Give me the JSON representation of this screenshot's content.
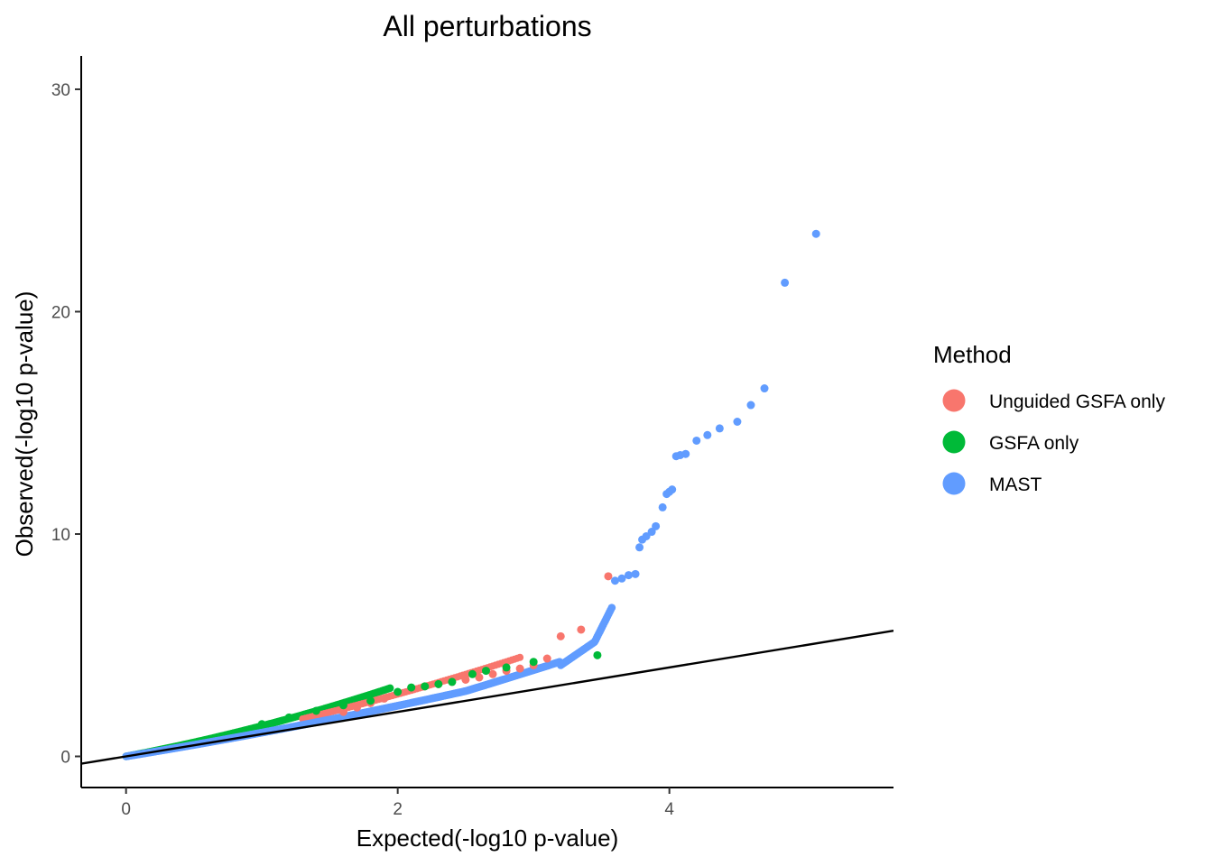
{
  "chart_data": {
    "type": "scatter",
    "title": "All perturbations",
    "xlabel": "Expected(-log10 p-value)",
    "ylabel": "Observed(-log10 p-value)",
    "xlim": [
      -0.33,
      5.65
    ],
    "ylim": [
      -1.4,
      31.5
    ],
    "x_ticks": [
      0,
      2,
      4
    ],
    "y_ticks": [
      0,
      10,
      20,
      30
    ],
    "grid": false,
    "reference_line": {
      "slope": 1,
      "intercept": 0
    },
    "legend": {
      "title": "Method",
      "position": "right",
      "entries": [
        {
          "label": "Unguided GSFA only",
          "color": "#F8766D"
        },
        {
          "label": "GSFA only",
          "color": "#00BA38"
        },
        {
          "label": "MAST",
          "color": "#619CFF"
        }
      ]
    },
    "series": [
      {
        "name": "Unguided GSFA only",
        "color": "#F8766D",
        "points": [
          [
            1.6,
            2.0
          ],
          [
            1.7,
            2.2
          ],
          [
            1.8,
            2.4
          ],
          [
            1.9,
            2.6
          ],
          [
            2.0,
            2.85
          ],
          [
            2.1,
            3.0
          ],
          [
            2.2,
            3.15
          ],
          [
            2.3,
            3.25
          ],
          [
            2.4,
            3.35
          ],
          [
            2.5,
            3.45
          ],
          [
            2.6,
            3.55
          ],
          [
            2.7,
            3.7
          ],
          [
            2.8,
            3.85
          ],
          [
            2.9,
            3.95
          ],
          [
            3.0,
            4.1
          ],
          [
            3.1,
            4.4
          ],
          [
            3.2,
            5.4
          ],
          [
            3.35,
            5.7
          ],
          [
            3.55,
            8.1
          ]
        ]
      },
      {
        "name": "GSFA only",
        "color": "#00BA38",
        "points": [
          [
            1.0,
            1.45
          ],
          [
            1.2,
            1.75
          ],
          [
            1.4,
            2.05
          ],
          [
            1.6,
            2.3
          ],
          [
            1.8,
            2.5
          ],
          [
            2.0,
            2.9
          ],
          [
            2.1,
            3.1
          ],
          [
            2.2,
            3.15
          ],
          [
            2.3,
            3.25
          ],
          [
            2.4,
            3.35
          ],
          [
            2.55,
            3.7
          ],
          [
            2.65,
            3.85
          ],
          [
            2.8,
            4.0
          ],
          [
            3.0,
            4.25
          ],
          [
            3.47,
            4.55
          ]
        ]
      },
      {
        "name": "MAST",
        "color": "#619CFF",
        "points": [
          [
            3.6,
            7.9
          ],
          [
            3.65,
            8.0
          ],
          [
            3.7,
            8.15
          ],
          [
            3.75,
            8.2
          ],
          [
            3.78,
            9.4
          ],
          [
            3.8,
            9.75
          ],
          [
            3.83,
            9.9
          ],
          [
            3.87,
            10.1
          ],
          [
            3.9,
            10.35
          ],
          [
            3.95,
            11.2
          ],
          [
            3.98,
            11.8
          ],
          [
            4.0,
            11.9
          ],
          [
            4.02,
            12.0
          ],
          [
            4.05,
            13.5
          ],
          [
            4.08,
            13.55
          ],
          [
            4.12,
            13.6
          ],
          [
            4.2,
            14.2
          ],
          [
            4.28,
            14.45
          ],
          [
            4.37,
            14.75
          ],
          [
            4.5,
            15.05
          ],
          [
            4.6,
            15.8
          ],
          [
            4.7,
            16.55
          ],
          [
            4.85,
            21.3
          ],
          [
            5.08,
            23.5
          ]
        ]
      }
    ]
  }
}
